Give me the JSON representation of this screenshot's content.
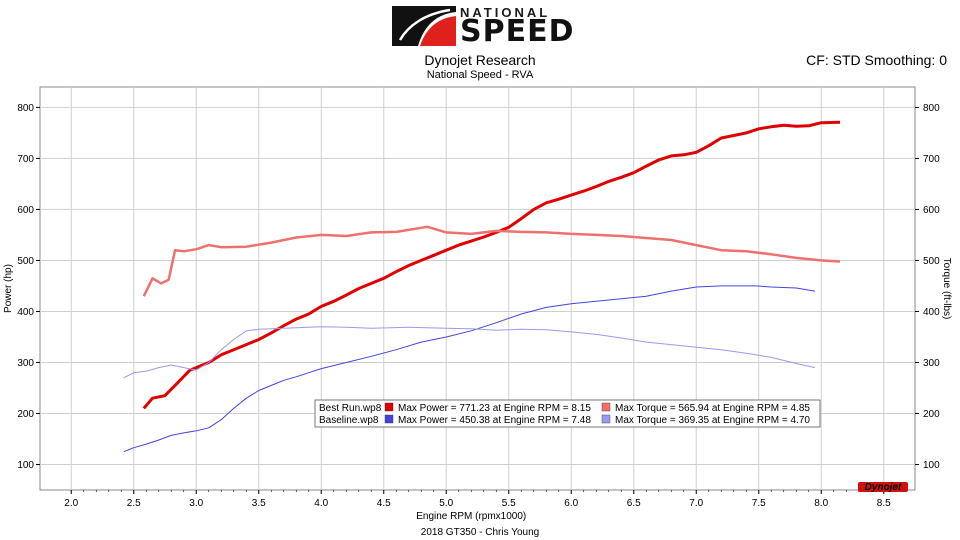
{
  "header": {
    "logo_top": "NATIONAL",
    "logo_main": "SPEED",
    "title": "Dynojet Research",
    "subtitle": "National Speed - RVA",
    "cf_label": "CF: STD Smoothing: 0",
    "footer": "2018 GT350 - Chris Young",
    "watermark": "Dynojet"
  },
  "colors": {
    "best_power": "#e00000",
    "best_torque": "#f07070",
    "base_power": "#4444dd",
    "base_torque": "#9a9aee",
    "grid": "#cfcfcf",
    "plot_bg": "#ffffff"
  },
  "chart_data": {
    "type": "line",
    "xlabel": "Engine RPM (rpmx1000)",
    "ylabel_left": "Power (hp)",
    "ylabel_right": "Torque (ft-lbs)",
    "xlim": [
      1.75,
      8.75
    ],
    "ylim_left": [
      50,
      840
    ],
    "ylim_right": [
      50,
      840
    ],
    "xticks": [
      "2.0",
      "2.5",
      "3.0",
      "3.5",
      "4.0",
      "4.5",
      "5.0",
      "5.5",
      "6.0",
      "6.5",
      "7.0",
      "7.5",
      "8.0",
      "8.5"
    ],
    "yticks": [
      "100",
      "200",
      "300",
      "400",
      "500",
      "600",
      "700",
      "800"
    ],
    "grid": true,
    "legend_position": "center-bottom",
    "series": [
      {
        "name": "Best Run.wp8 Max Power",
        "key": "best_power",
        "axis": "left",
        "x": [
          2.58,
          2.65,
          2.75,
          2.85,
          2.95,
          3.0,
          3.05,
          3.1,
          3.2,
          3.3,
          3.4,
          3.5,
          3.6,
          3.7,
          3.8,
          3.9,
          4.0,
          4.1,
          4.2,
          4.3,
          4.4,
          4.5,
          4.6,
          4.7,
          4.8,
          4.9,
          5.0,
          5.1,
          5.2,
          5.3,
          5.4,
          5.5,
          5.6,
          5.7,
          5.8,
          5.9,
          6.0,
          6.1,
          6.2,
          6.3,
          6.4,
          6.5,
          6.6,
          6.7,
          6.8,
          6.9,
          7.0,
          7.1,
          7.2,
          7.3,
          7.4,
          7.5,
          7.6,
          7.7,
          7.8,
          7.9,
          8.0,
          8.15
        ],
        "y": [
          210,
          230,
          235,
          260,
          285,
          290,
          295,
          300,
          315,
          325,
          335,
          345,
          358,
          372,
          385,
          395,
          410,
          420,
          432,
          445,
          455,
          465,
          478,
          490,
          500,
          510,
          520,
          530,
          538,
          546,
          555,
          565,
          582,
          600,
          613,
          620,
          628,
          636,
          645,
          655,
          663,
          672,
          685,
          697,
          705,
          707,
          712,
          725,
          740,
          745,
          750,
          758,
          762,
          765,
          763,
          764,
          770,
          771
        ]
      },
      {
        "name": "Best Run.wp8 Max Torque",
        "key": "best_torque",
        "axis": "right",
        "x": [
          2.58,
          2.65,
          2.72,
          2.78,
          2.83,
          2.9,
          3.0,
          3.1,
          3.2,
          3.4,
          3.6,
          3.8,
          4.0,
          4.2,
          4.4,
          4.6,
          4.85,
          5.0,
          5.2,
          5.4,
          5.6,
          5.8,
          6.0,
          6.2,
          6.4,
          6.6,
          6.8,
          7.0,
          7.2,
          7.4,
          7.6,
          7.8,
          8.0,
          8.15
        ],
        "y": [
          430,
          465,
          455,
          462,
          520,
          518,
          522,
          530,
          526,
          527,
          535,
          545,
          550,
          548,
          555,
          556,
          566,
          555,
          552,
          558,
          556,
          555,
          552,
          550,
          548,
          544,
          540,
          530,
          520,
          518,
          512,
          505,
          500,
          498
        ]
      },
      {
        "name": "Baseline.wp8 Max Power",
        "key": "base_power",
        "axis": "left",
        "x": [
          2.42,
          2.5,
          2.6,
          2.7,
          2.8,
          2.9,
          3.0,
          3.1,
          3.2,
          3.3,
          3.4,
          3.5,
          3.6,
          3.7,
          3.8,
          3.9,
          4.0,
          4.2,
          4.4,
          4.6,
          4.8,
          5.0,
          5.2,
          5.4,
          5.6,
          5.8,
          6.0,
          6.2,
          6.4,
          6.6,
          6.8,
          7.0,
          7.2,
          7.48,
          7.6,
          7.8,
          7.95
        ],
        "y": [
          125,
          133,
          140,
          148,
          157,
          162,
          166,
          172,
          188,
          210,
          230,
          245,
          255,
          265,
          272,
          280,
          288,
          300,
          312,
          325,
          340,
          350,
          362,
          378,
          395,
          408,
          415,
          420,
          425,
          430,
          440,
          448,
          450,
          450,
          448,
          446,
          440
        ]
      },
      {
        "name": "Baseline.wp8 Max Torque",
        "key": "base_torque",
        "axis": "right",
        "x": [
          2.42,
          2.5,
          2.6,
          2.7,
          2.8,
          2.9,
          3.0,
          3.1,
          3.2,
          3.3,
          3.4,
          3.5,
          3.6,
          3.8,
          4.0,
          4.2,
          4.4,
          4.7,
          5.0,
          5.2,
          5.4,
          5.6,
          5.8,
          6.0,
          6.2,
          6.4,
          6.6,
          6.8,
          7.0,
          7.2,
          7.4,
          7.6,
          7.8,
          7.95
        ],
        "y": [
          270,
          280,
          283,
          290,
          295,
          290,
          285,
          300,
          325,
          345,
          362,
          365,
          366,
          368,
          370,
          369,
          367,
          369,
          367,
          366,
          363,
          365,
          364,
          360,
          355,
          348,
          340,
          335,
          330,
          325,
          318,
          310,
          298,
          290
        ]
      }
    ],
    "legend": [
      {
        "file": "Best Run.wp8",
        "power_text": "Max Power = 771.23 at Engine RPM = 8.15",
        "torque_text": "Max Torque = 565.94 at Engine RPM = 4.85"
      },
      {
        "file": "Baseline.wp8",
        "power_text": "Max Power = 450.38 at Engine RPM = 7.48",
        "torque_text": "Max Torque = 369.35 at Engine RPM = 4.70"
      }
    ]
  }
}
